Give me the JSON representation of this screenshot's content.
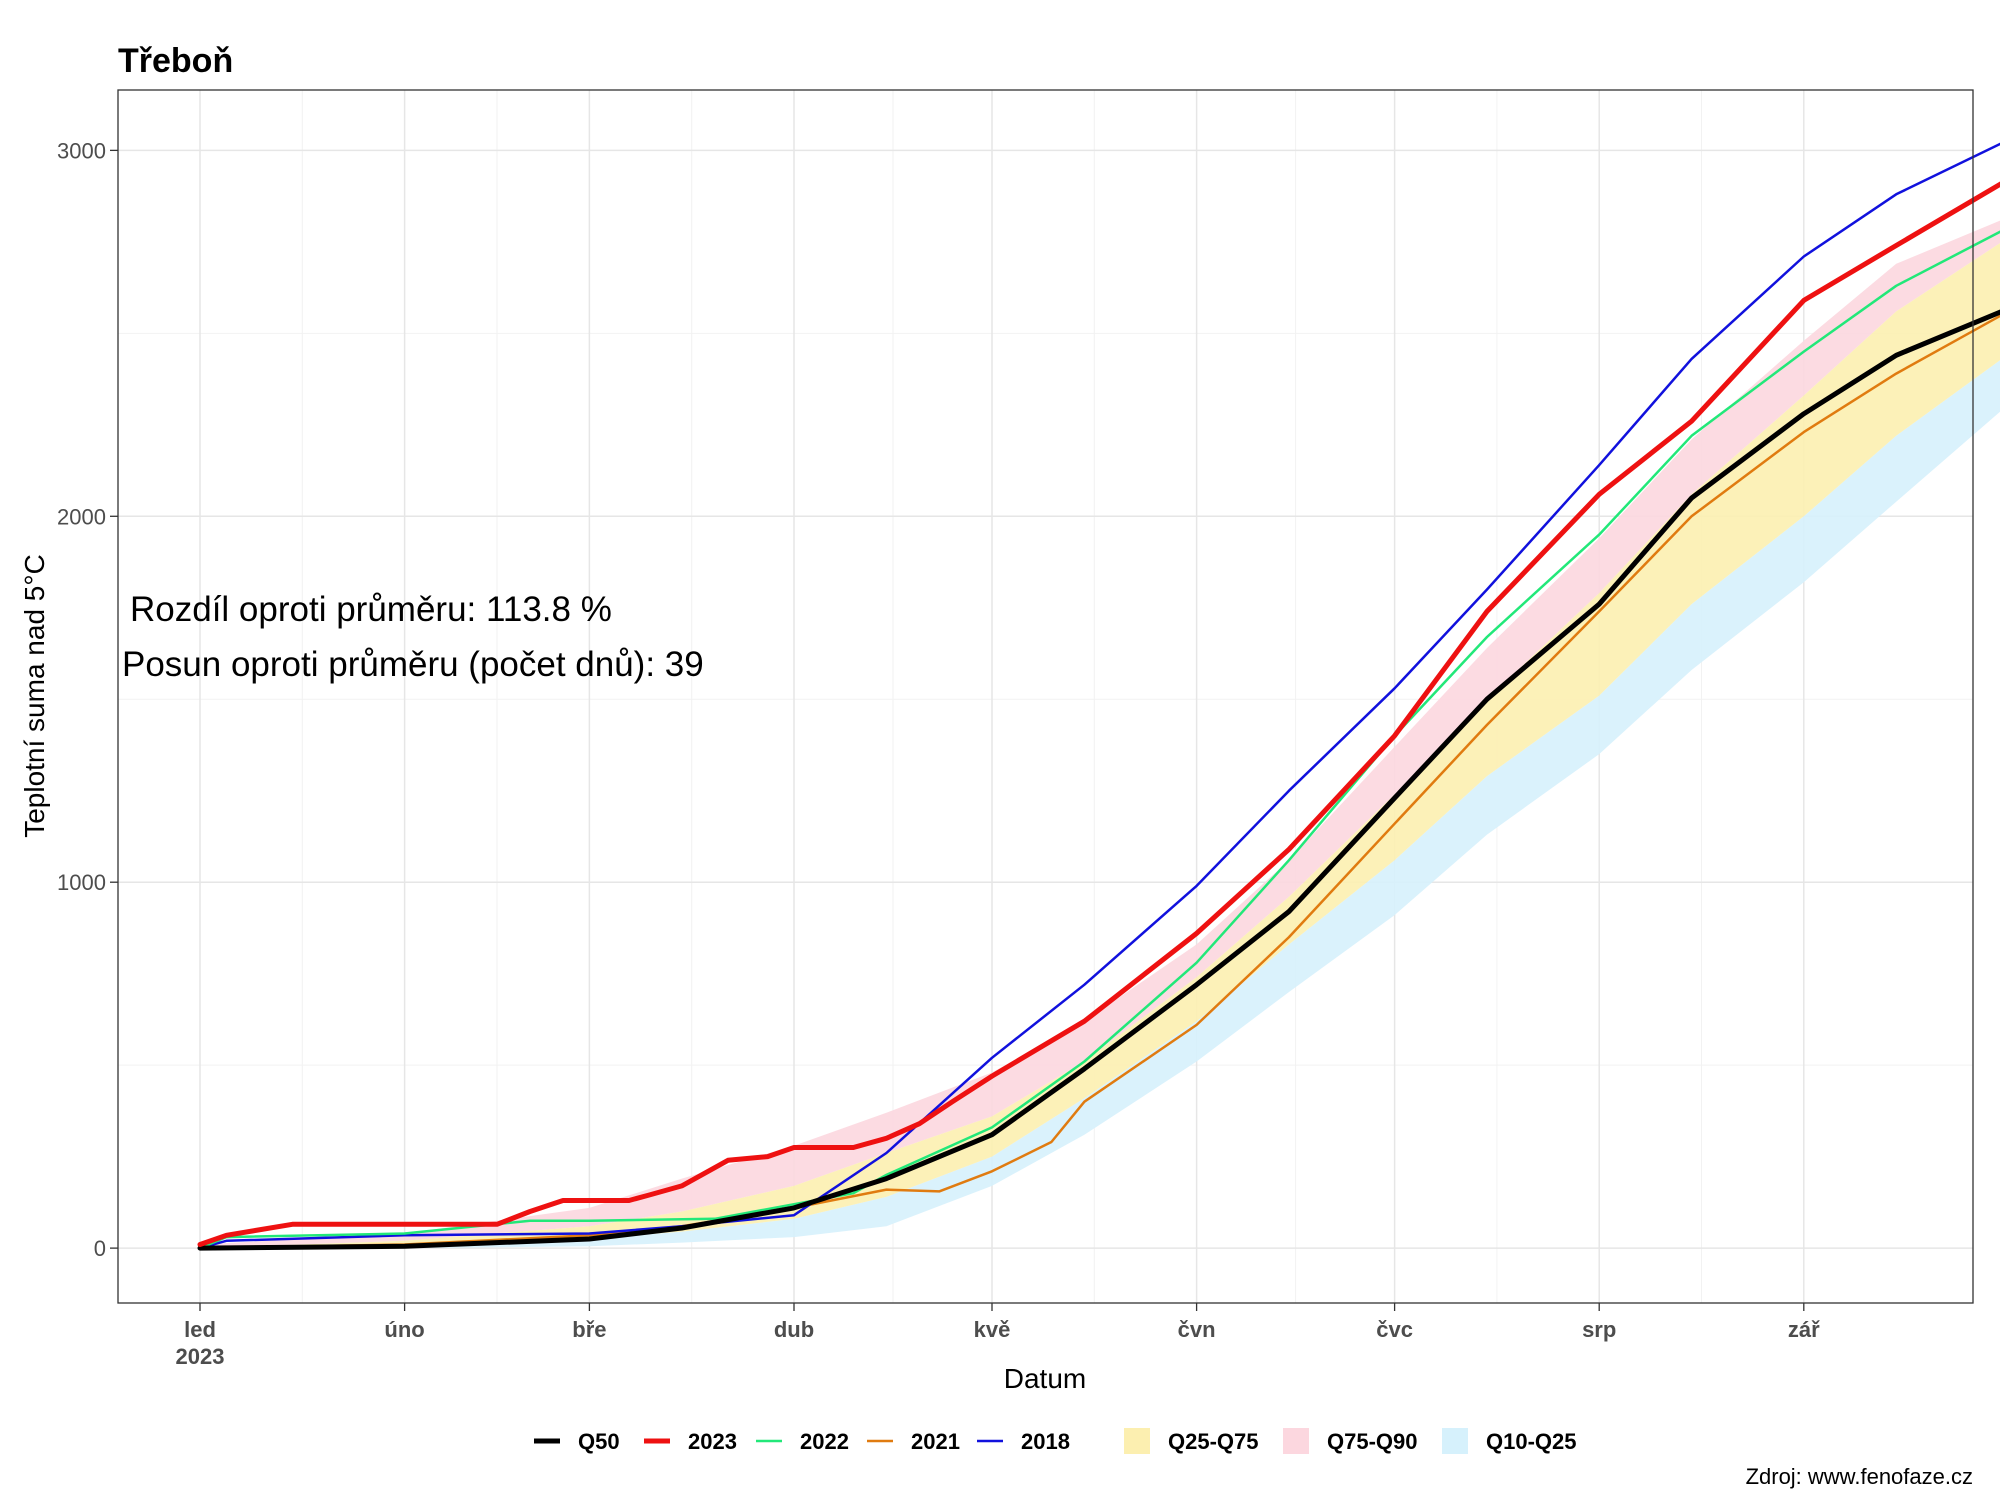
{
  "chart_data": {
    "type": "line",
    "title": "Třeboň",
    "xlabel": "Datum",
    "ylabel": "Teplotní suma nad 5°C",
    "ylim": [
      -150,
      3165
    ],
    "y_ticks": [
      0,
      1000,
      2000,
      3000
    ],
    "x_domain": [
      "2023-01-01",
      "2023-10-01"
    ],
    "x_ticks": [
      {
        "date": "2023-01-01",
        "label": "led",
        "sublabel": "2023"
      },
      {
        "date": "2023-02-01",
        "label": "úno",
        "sublabel": ""
      },
      {
        "date": "2023-03-01",
        "label": "bře",
        "sublabel": ""
      },
      {
        "date": "2023-04-01",
        "label": "dub",
        "sublabel": ""
      },
      {
        "date": "2023-05-01",
        "label": "kvě",
        "sublabel": ""
      },
      {
        "date": "2023-06-01",
        "label": "čvn",
        "sublabel": ""
      },
      {
        "date": "2023-07-01",
        "label": "čvc",
        "sublabel": ""
      },
      {
        "date": "2023-08-01",
        "label": "srp",
        "sublabel": ""
      },
      {
        "date": "2023-09-01",
        "label": "zář",
        "sublabel": ""
      }
    ],
    "grid": true,
    "legend_position": "bottom",
    "annotations": [
      "Rozdíl oproti průměru: 113.8 %",
      "Posun oproti průměru (počet dnů): 39"
    ],
    "source": "Zdroj: www.fenofaze.cz",
    "bands": [
      {
        "name": "Q10-Q25",
        "color": "#d6f1fc",
        "x": [
          "2023-01-01",
          "2023-02-01",
          "2023-03-01",
          "2023-03-15",
          "2023-04-01",
          "2023-04-15",
          "2023-05-01",
          "2023-05-15",
          "2023-06-01",
          "2023-06-15",
          "2023-07-01",
          "2023-07-15",
          "2023-08-01",
          "2023-08-15",
          "2023-09-01",
          "2023-09-15",
          "2023-10-01"
        ],
        "lower": [
          0,
          0,
          5,
          15,
          30,
          60,
          170,
          310,
          510,
          700,
          910,
          1130,
          1350,
          1580,
          1820,
          2040,
          2290
        ],
        "upper": [
          0,
          5,
          25,
          45,
          80,
          140,
          250,
          410,
          620,
          830,
          1060,
          1290,
          1510,
          1760,
          2000,
          2220,
          2430
        ]
      },
      {
        "name": "Q75-Q90",
        "color": "#fcd7df",
        "x": [
          "2023-01-01",
          "2023-02-01",
          "2023-03-01",
          "2023-03-15",
          "2023-04-01",
          "2023-04-15",
          "2023-05-01",
          "2023-05-15",
          "2023-06-01",
          "2023-06-15",
          "2023-07-01",
          "2023-07-15",
          "2023-08-01",
          "2023-08-15",
          "2023-09-01",
          "2023-09-15",
          "2023-10-01"
        ],
        "lower": [
          0,
          20,
          60,
          100,
          170,
          260,
          360,
          510,
          740,
          960,
          1240,
          1500,
          1790,
          2060,
          2330,
          2560,
          2750
        ],
        "upper": [
          10,
          40,
          110,
          190,
          280,
          370,
          480,
          620,
          830,
          1060,
          1370,
          1640,
          1940,
          2210,
          2480,
          2690,
          2810
        ]
      },
      {
        "name": "Q25-Q75",
        "color": "#fcefb0",
        "x": [
          "2023-01-01",
          "2023-02-01",
          "2023-03-01",
          "2023-03-15",
          "2023-04-01",
          "2023-04-15",
          "2023-05-01",
          "2023-05-15",
          "2023-06-01",
          "2023-06-15",
          "2023-07-01",
          "2023-07-15",
          "2023-08-01",
          "2023-08-15",
          "2023-09-01",
          "2023-09-15",
          "2023-10-01"
        ],
        "lower": [
          0,
          5,
          25,
          45,
          80,
          140,
          250,
          410,
          620,
          830,
          1060,
          1290,
          1510,
          1760,
          2000,
          2220,
          2430
        ],
        "upper": [
          0,
          20,
          60,
          100,
          170,
          260,
          360,
          510,
          740,
          960,
          1240,
          1500,
          1790,
          2060,
          2330,
          2560,
          2750
        ]
      }
    ],
    "series": [
      {
        "name": "2021",
        "color": "#e07b10",
        "width": 2.5,
        "x": [
          "2023-01-01",
          "2023-02-01",
          "2023-03-01",
          "2023-03-15",
          "2023-04-01",
          "2023-04-15",
          "2023-04-23",
          "2023-05-01",
          "2023-05-10",
          "2023-05-15",
          "2023-06-01",
          "2023-06-15",
          "2023-07-01",
          "2023-07-15",
          "2023-08-01",
          "2023-08-15",
          "2023-09-01",
          "2023-09-15",
          "2023-10-01"
        ],
        "y": [
          0,
          10,
          35,
          60,
          110,
          160,
          155,
          210,
          290,
          400,
          610,
          850,
          1160,
          1430,
          1740,
          2000,
          2230,
          2390,
          2550
        ]
      },
      {
        "name": "2018",
        "color": "#1111dd",
        "width": 2.5,
        "x": [
          "2023-01-01",
          "2023-01-05",
          "2023-02-01",
          "2023-03-01",
          "2023-03-15",
          "2023-04-01",
          "2023-04-15",
          "2023-05-01",
          "2023-05-15",
          "2023-06-01",
          "2023-06-15",
          "2023-07-01",
          "2023-07-15",
          "2023-08-01",
          "2023-08-15",
          "2023-09-01",
          "2023-09-15",
          "2023-10-01"
        ],
        "y": [
          0,
          20,
          35,
          40,
          60,
          90,
          260,
          520,
          720,
          990,
          1250,
          1530,
          1800,
          2140,
          2430,
          2710,
          2880,
          3020
        ]
      },
      {
        "name": "2022",
        "color": "#22e879",
        "width": 2.5,
        "x": [
          "2023-01-01",
          "2023-01-05",
          "2023-02-01",
          "2023-02-20",
          "2023-03-01",
          "2023-03-20",
          "2023-04-01",
          "2023-04-10",
          "2023-04-15",
          "2023-05-01",
          "2023-05-15",
          "2023-06-01",
          "2023-06-15",
          "2023-07-01",
          "2023-07-15",
          "2023-08-01",
          "2023-08-15",
          "2023-09-01",
          "2023-09-15",
          "2023-10-01"
        ],
        "y": [
          0,
          30,
          40,
          75,
          75,
          80,
          120,
          150,
          200,
          330,
          510,
          780,
          1060,
          1400,
          1670,
          1950,
          2220,
          2450,
          2630,
          2780
        ]
      },
      {
        "name": "Q50",
        "color": "#000000",
        "width": 5,
        "x": [
          "2023-01-01",
          "2023-02-01",
          "2023-03-01",
          "2023-03-15",
          "2023-04-01",
          "2023-04-15",
          "2023-05-01",
          "2023-05-15",
          "2023-06-01",
          "2023-06-15",
          "2023-07-01",
          "2023-07-15",
          "2023-08-01",
          "2023-08-15",
          "2023-09-01",
          "2023-09-15",
          "2023-10-01"
        ],
        "y": [
          0,
          5,
          25,
          55,
          110,
          190,
          310,
          490,
          720,
          920,
          1230,
          1500,
          1760,
          2050,
          2280,
          2440,
          2560
        ]
      },
      {
        "name": "2023",
        "color": "#ee1111",
        "width": 5,
        "x": [
          "2023-01-01",
          "2023-01-05",
          "2023-01-15",
          "2023-02-15",
          "2023-02-20",
          "2023-02-25",
          "2023-03-01",
          "2023-03-07",
          "2023-03-10",
          "2023-03-15",
          "2023-03-22",
          "2023-03-28",
          "2023-04-01",
          "2023-04-10",
          "2023-04-15",
          "2023-04-20",
          "2023-04-25",
          "2023-05-01",
          "2023-05-15",
          "2023-06-01",
          "2023-06-15",
          "2023-07-01",
          "2023-07-15",
          "2023-08-01",
          "2023-08-15",
          "2023-09-01",
          "2023-09-15",
          "2023-10-01"
        ],
        "y": [
          10,
          35,
          65,
          65,
          100,
          130,
          130,
          130,
          145,
          170,
          240,
          250,
          275,
          275,
          300,
          340,
          400,
          470,
          620,
          860,
          1090,
          1400,
          1740,
          2060,
          2260,
          2590,
          2740,
          2910
        ]
      }
    ],
    "legend": [
      {
        "name": "Q50",
        "kind": "line",
        "color": "#000000"
      },
      {
        "name": "2023",
        "kind": "line",
        "color": "#ee1111"
      },
      {
        "name": "2022",
        "kind": "line",
        "color": "#22e879"
      },
      {
        "name": "2021",
        "kind": "line",
        "color": "#e07b10"
      },
      {
        "name": "2018",
        "kind": "line",
        "color": "#1111dd"
      },
      {
        "name": "Q25-Q75",
        "kind": "band",
        "color": "#fcefb0"
      },
      {
        "name": "Q75-Q90",
        "kind": "band",
        "color": "#fcd7df"
      },
      {
        "name": "Q10-Q25",
        "kind": "band",
        "color": "#d6f1fc"
      }
    ]
  }
}
